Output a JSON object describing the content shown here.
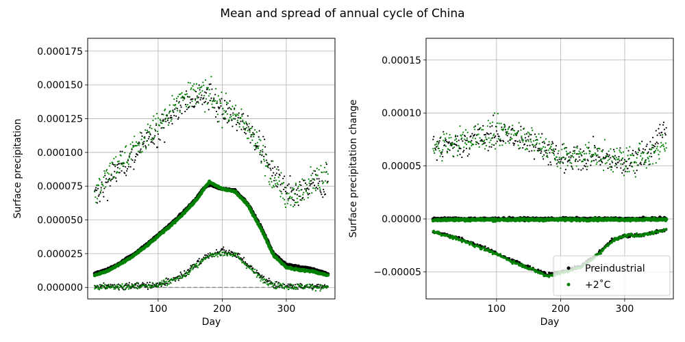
{
  "figure": {
    "title": "Mean and spread of annual cycle of China"
  },
  "colors": {
    "preindustrial": "#000000",
    "warming": "#008000",
    "grid": "#b0b0b0",
    "zero_line": "#808080"
  },
  "chart_data": [
    {
      "type": "scatter",
      "name": "left",
      "xlabel": "Day",
      "ylabel": "Surface precipitation",
      "xlim": [
        -10,
        376
      ],
      "ylim": [
        -8.5e-06,
        0.0001845
      ],
      "xticks": [
        100,
        200,
        300
      ],
      "xtick_labels": [
        "100",
        "200",
        "300"
      ],
      "yticks": [
        0,
        2.5e-05,
        5e-05,
        7.5e-05,
        0.0001,
        0.000125,
        0.00015,
        0.000175
      ],
      "ytick_labels": [
        "0.000000",
        "0.000025",
        "0.000050",
        "0.000075",
        "0.000100",
        "0.000125",
        "0.000150",
        "0.000175"
      ],
      "grid": true,
      "series": [
        {
          "name": "Preindustrial",
          "color": "#000000",
          "mean_curve": {
            "x": [
              1,
              20,
              40,
              60,
              80,
              100,
              120,
              140,
              160,
              170,
              180,
              200,
              220,
              240,
              260,
              280,
              300,
              320,
              340,
              365
            ],
            "y": [
              1.05e-05,
              1.3e-05,
              1.8e-05,
              2.4e-05,
              3.1e-05,
              3.9e-05,
              4.7e-05,
              5.6e-05,
              6.6e-05,
              7.3e-05,
              7.6e-05,
              7.3e-05,
              7.2e-05,
              6.2e-05,
              4.5e-05,
              2.5e-05,
              1.7e-05,
              1.5e-05,
              1.4e-05,
              1e-05
            ]
          },
          "upper_band": {
            "x": [
              1,
              20,
              40,
              60,
              80,
              100,
              120,
              140,
              160,
              180,
              200,
              220,
              240,
              260,
              280,
              300,
              320,
              340,
              365
            ],
            "y": [
              6.6e-05,
              7.8e-05,
              8.8e-05,
              9.7e-05,
              0.000106,
              0.000116,
              0.000127,
              0.000135,
              0.000145,
              0.00014,
              0.000134,
              0.000125,
              0.000118,
              0.000104,
              8.5e-05,
              7e-05,
              6.8e-05,
              7.6e-05,
              7.8e-05
            ]
          },
          "lower_band": {
            "x": [
              1,
              50,
              100,
              120,
              140,
              160,
              180,
              200,
              220,
              240,
              260,
              280,
              300,
              320,
              365
            ],
            "y": [
              5e-07,
              8e-07,
              2e-06,
              5e-06,
              1e-05,
              1.7e-05,
              2.4e-05,
              2.7e-05,
              2.5e-05,
              1.7e-05,
              8e-06,
              2e-06,
              8e-07,
              5e-07,
              3e-07
            ]
          }
        },
        {
          "name": "+2˚C",
          "color": "#008000",
          "mean_curve": {
            "x": [
              1,
              20,
              40,
              60,
              80,
              100,
              120,
              140,
              160,
              170,
              180,
              200,
              220,
              240,
              260,
              280,
              300,
              320,
              340,
              365
            ],
            "y": [
              9e-06,
              1.2e-05,
              1.7e-05,
              2.3e-05,
              3e-05,
              3.8e-05,
              4.6e-05,
              5.5e-05,
              6.5e-05,
              7.2e-05,
              7.8e-05,
              7.3e-05,
              7.1e-05,
              6.1e-05,
              4.4e-05,
              2.4e-05,
              1.5e-05,
              1.3e-05,
              1.2e-05,
              9e-06
            ]
          },
          "upper_band": {
            "x": [
              1,
              20,
              40,
              60,
              80,
              100,
              120,
              140,
              160,
              180,
              200,
              220,
              240,
              260,
              280,
              300,
              320,
              340,
              365
            ],
            "y": [
              7e-05,
              8.2e-05,
              9.2e-05,
              0.0001,
              0.00011,
              0.000122,
              0.000132,
              0.000142,
              0.000148,
              0.000142,
              0.000132,
              0.000128,
              0.000118,
              0.0001,
              8.2e-05,
              6.8e-05,
              7e-05,
              8e-05,
              8.2e-05
            ]
          },
          "lower_band": {
            "x": [
              1,
              50,
              100,
              120,
              140,
              160,
              180,
              200,
              220,
              240,
              260,
              280,
              300,
              320,
              365
            ],
            "y": [
              3e-07,
              6e-07,
              1.8e-06,
              4.5e-06,
              9e-06,
              1.6e-05,
              2.3e-05,
              2.6e-05,
              2.4e-05,
              1.6e-05,
              7e-06,
              1.8e-06,
              6e-07,
              4e-07,
              3e-07
            ]
          }
        }
      ]
    },
    {
      "type": "scatter",
      "name": "right",
      "xlabel": "Day",
      "ylabel": "Surface precipitation change",
      "xlim": [
        -10,
        376
      ],
      "ylim": [
        -7.55e-05,
        0.0001705
      ],
      "xticks": [
        100,
        200,
        300
      ],
      "xtick_labels": [
        "100",
        "200",
        "300"
      ],
      "yticks": [
        -5e-05,
        0,
        5e-05,
        0.0001,
        0.00015
      ],
      "ytick_labels": [
        "−0.00005",
        "0.00000",
        "0.00005",
        "0.00010",
        "0.00015"
      ],
      "grid": true,
      "legend": {
        "position": "lower-right",
        "entries": [
          "Preindustrial",
          "+2˚C"
        ]
      },
      "series": [
        {
          "name": "Preindustrial",
          "color": "#000000",
          "mean_curve": {
            "x": [
              1,
              365
            ],
            "y": [
              0,
              0
            ]
          },
          "upper_band": {
            "x": [
              1,
              50,
              100,
              150,
              200,
              250,
              300,
              340,
              365
            ],
            "y": [
              6.5e-05,
              7.2e-05,
              8e-05,
              7.5e-05,
              5.5e-05,
              6e-05,
              5.2e-05,
              6.5e-05,
              8.5e-05
            ]
          },
          "lower_band": {
            "x": [
              1,
              40,
              80,
              120,
              160,
              180,
              200,
              230,
              260,
              280,
              300,
              330,
              365
            ],
            "y": [
              -1.2e-05,
              -1.8e-05,
              -2.7e-05,
              -3.8e-05,
              -4.8e-05,
              -5.2e-05,
              -5e-05,
              -4.5e-05,
              -3.2e-05,
              -2e-05,
              -1.6e-05,
              -1.5e-05,
              -1e-05
            ]
          }
        },
        {
          "name": "+2˚C",
          "color": "#008000",
          "mean_curve": {
            "x": [
              1,
              365
            ],
            "y": [
              -8e-07,
              -5e-07
            ]
          },
          "upper_band": {
            "x": [
              1,
              50,
              100,
              150,
              200,
              250,
              300,
              340,
              365
            ],
            "y": [
              6.8e-05,
              7.4e-05,
              8.2e-05,
              7.8e-05,
              5.8e-05,
              6.2e-05,
              5.5e-05,
              6e-05,
              7e-05
            ]
          },
          "lower_band": {
            "x": [
              1,
              40,
              80,
              120,
              160,
              180,
              200,
              230,
              260,
              280,
              300,
              330,
              365
            ],
            "y": [
              -1.2e-05,
              -1.9e-05,
              -2.8e-05,
              -3.9e-05,
              -4.9e-05,
              -5.4e-05,
              -5.1e-05,
              -4.6e-05,
              -3.3e-05,
              -2.1e-05,
              -1.6e-05,
              -1.5e-05,
              -1e-05
            ]
          }
        }
      ]
    }
  ]
}
